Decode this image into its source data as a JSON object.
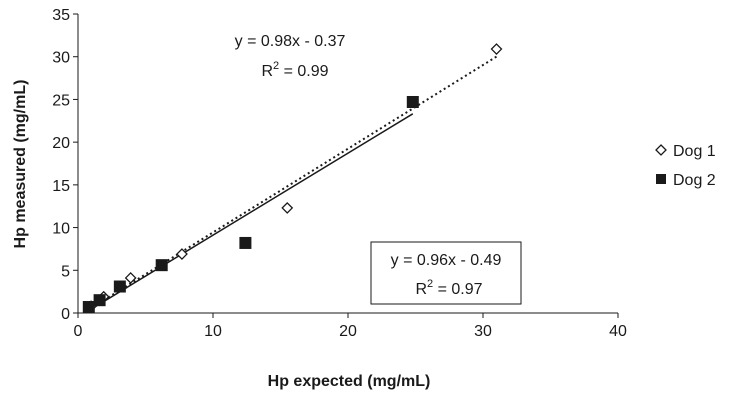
{
  "chart_data": {
    "type": "scatter",
    "xlabel": "Hp expected (mg/mL)",
    "ylabel": "Hp measured (mg/mL)",
    "xlim": [
      0,
      40
    ],
    "ylim": [
      0,
      35
    ],
    "x_ticks": [
      0,
      10,
      20,
      30,
      40
    ],
    "y_ticks": [
      0,
      5,
      10,
      15,
      20,
      25,
      30,
      35
    ],
    "grid": false,
    "legend_placement": "right",
    "series": [
      {
        "name": "Dog 1",
        "marker": "open-diamond",
        "color": "#1a1a1a",
        "points": [
          {
            "x": 0.97,
            "y": 0.8
          },
          {
            "x": 1.9,
            "y": 1.9
          },
          {
            "x": 3.9,
            "y": 4.1
          },
          {
            "x": 7.7,
            "y": 6.9
          },
          {
            "x": 15.5,
            "y": 12.3
          },
          {
            "x": 31.0,
            "y": 30.9
          }
        ],
        "trendline": {
          "slope": 0.98,
          "intercept": -0.37,
          "r2": 0.99,
          "style": "dotted"
        }
      },
      {
        "name": "Dog 2",
        "marker": "filled-square",
        "color": "#1a1a1a",
        "points": [
          {
            "x": 0.8,
            "y": 0.7
          },
          {
            "x": 1.6,
            "y": 1.5
          },
          {
            "x": 3.1,
            "y": 3.1
          },
          {
            "x": 6.2,
            "y": 5.6
          },
          {
            "x": 12.4,
            "y": 8.2
          },
          {
            "x": 24.8,
            "y": 24.7
          }
        ],
        "trendline": {
          "slope": 0.96,
          "intercept": -0.49,
          "r2": 0.97,
          "style": "solid"
        }
      }
    ],
    "annotations": [
      {
        "id": "dog1-eq",
        "equation": "y = 0.98x - 0.37",
        "r2_label": "R",
        "r2_sup": "2",
        "r2_value": " = 0.99",
        "boxed": false
      },
      {
        "id": "dog2-eq",
        "equation": "y = 0.96x - 0.49",
        "r2_label": "R",
        "r2_sup": "2",
        "r2_value": " = 0.97",
        "boxed": true
      }
    ]
  }
}
